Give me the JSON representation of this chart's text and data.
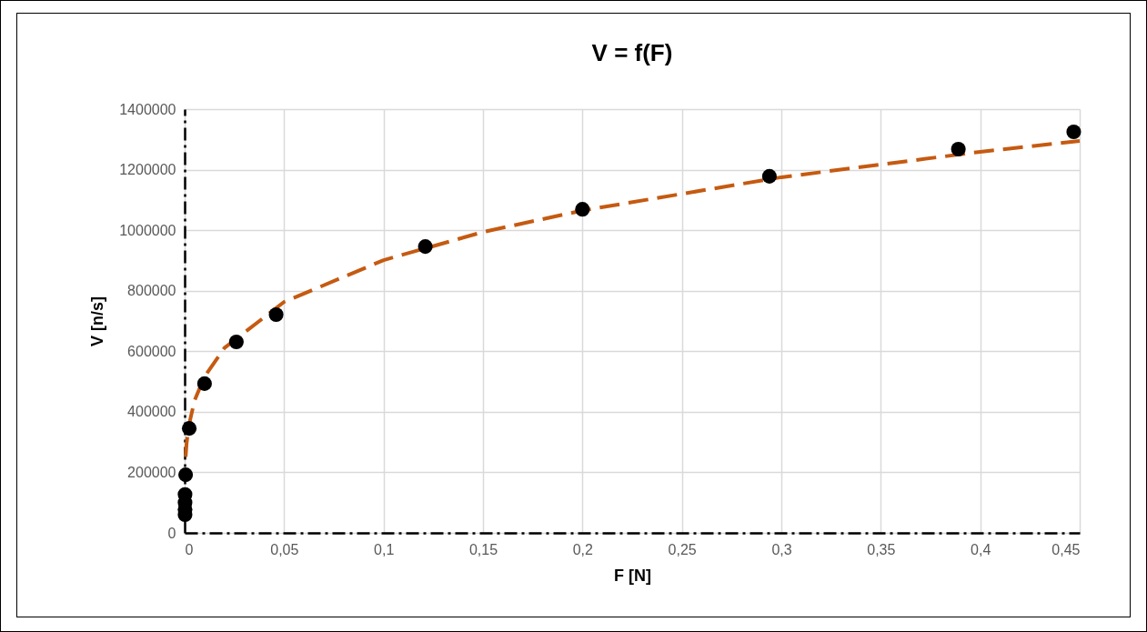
{
  "chart_data": {
    "type": "scatter",
    "title": "V = f(F)",
    "xlabel": "F [N]",
    "ylabel": "V [n/s]",
    "grid": true,
    "xlim": [
      0,
      0.45
    ],
    "xticks": [
      0,
      {
        "value": 0.05,
        "label": "0,05"
      },
      {
        "value": 0.1,
        "label": "0,1"
      },
      {
        "value": 0.15,
        "label": "0,15"
      },
      {
        "value": 0.2,
        "label": "0,2"
      },
      {
        "value": 0.25,
        "label": "0,25"
      },
      {
        "value": 0.3,
        "label": "0,3"
      },
      {
        "value": 0.35,
        "label": "0,35"
      },
      {
        "value": 0.4,
        "label": "0,4"
      },
      {
        "value": 0.45,
        "label": "0,45"
      }
    ],
    "ylim": [
      0,
      1400000
    ],
    "yticks": [
      0,
      200000,
      400000,
      600000,
      800000,
      1000000,
      1200000,
      1400000
    ],
    "series": [
      {
        "type": "line",
        "color": "#c55a11",
        "line_style": "dashed",
        "marker": "none",
        "x": [
          0.0005,
          0.001,
          0.002,
          0.005,
          0.01,
          0.02,
          0.05,
          0.1,
          0.15,
          0.2,
          0.3,
          0.4,
          0.45
        ],
        "values": [
          251000,
          297000,
          351000,
          438000,
          516000,
          611000,
          763000,
          901000,
          994000,
          1065000,
          1175000,
          1259000,
          1295000
        ]
      },
      {
        "type": "scatter",
        "color": "#000000",
        "marker": "circle",
        "x": [
          0.0002,
          0.0002,
          0.0002,
          0.0002,
          0.0005,
          0.0023,
          0.01,
          0.026,
          0.046,
          0.121,
          0.2,
          0.294,
          0.389,
          0.447
        ],
        "values": [
          60000,
          77000,
          100000,
          127000,
          192000,
          345000,
          493000,
          631000,
          721000,
          946000,
          1069000,
          1178000,
          1268000,
          1325000
        ]
      }
    ]
  }
}
